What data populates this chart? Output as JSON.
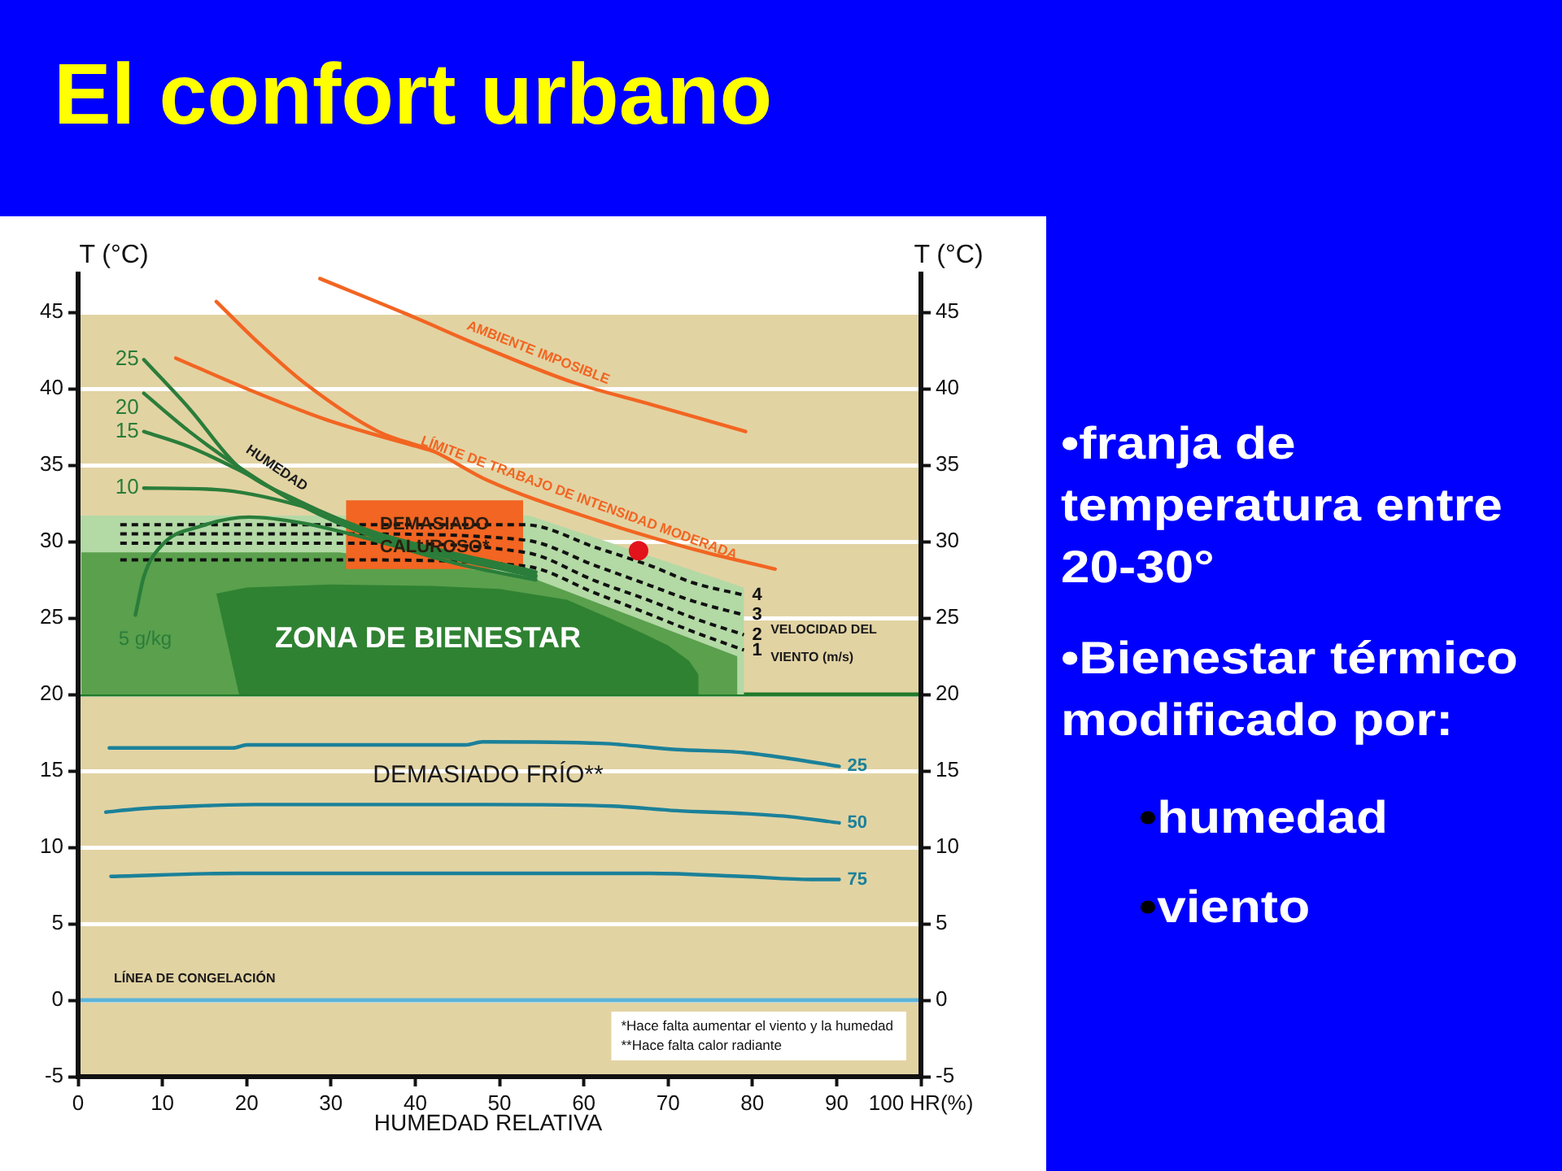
{
  "chart_data": [
    {
      "type": "line",
      "title": "El confort urbano",
      "xlabel": "HUMEDAD RELATIVA",
      "ylabel": "T (°C)",
      "y2label": "T (°C)",
      "xlim": [
        0,
        100
      ],
      "xticks": [
        0,
        10,
        20,
        30,
        40,
        50,
        60,
        70,
        80,
        90,
        {
          "value": 100,
          "label": "100 HR(%)"
        }
      ],
      "ylim": [
        -5,
        47.5
      ],
      "yticks": [
        -5,
        0,
        5,
        10,
        15,
        20,
        25,
        30,
        35,
        40,
        45
      ],
      "y2lim": [
        -5,
        47.5
      ],
      "y2ticks": [
        -5,
        0,
        5,
        10,
        15,
        20,
        25,
        30,
        35,
        40,
        45
      ],
      "grid": "y",
      "bands": [
        {
          "axis": "y",
          "from": -5,
          "to": 45,
          "color": "#e2d3a3"
        }
      ],
      "ref_lines": [
        {
          "axis": "y",
          "value": 0,
          "label": "LÍNEA DE CONGELACIÓN",
          "color": "#5ab4da"
        },
        {
          "axis": "y",
          "value": 20,
          "color": "#1f7a2a"
        }
      ],
      "series": [
        {
          "type": "area",
          "color": "#b3d9a5",
          "x": [
            0,
            53.5,
            79,
            79,
            0
          ],
          "values": [
            31.7,
            31.7,
            27,
            20,
            20
          ]
        },
        {
          "type": "area",
          "color": "#5aa04d",
          "x": [
            0.4,
            31,
            53.5,
            78.2,
            78.2,
            0.4
          ],
          "values": [
            29.3,
            29.3,
            27.7,
            22.5,
            20,
            20
          ]
        },
        {
          "type": "area",
          "color": "#2f8232",
          "x": [
            16.4,
            20,
            30,
            42,
            50,
            58,
            63,
            67,
            70,
            72.5,
            73.6,
            73.6,
            19.1
          ],
          "values": [
            26.6,
            27,
            27.2,
            27.1,
            26.9,
            26.2,
            25,
            24,
            23.2,
            22.2,
            21.3,
            20,
            20
          ]
        },
        {
          "type": "area",
          "color": "#f26522",
          "x": [
            31.8,
            52.8,
            52.8,
            31.8
          ],
          "values": [
            32.7,
            32.7,
            28.2,
            28.2
          ]
        },
        {
          "name": "1",
          "color": "#111111",
          "line_style": "dashed",
          "x": [
            5,
            32,
            53,
            61.5,
            68,
            73,
            79
          ],
          "values": [
            28.8,
            28.8,
            28.4,
            26.6,
            25.2,
            24.1,
            22.9
          ]
        },
        {
          "name": "2",
          "color": "#111111",
          "line_style": "dashed",
          "x": [
            5,
            32,
            53,
            61.5,
            68,
            73,
            79
          ],
          "values": [
            29.9,
            29.9,
            29.3,
            27.4,
            26.1,
            25,
            23.9
          ]
        },
        {
          "name": "3",
          "color": "#111111",
          "line_style": "dashed",
          "x": [
            5,
            32,
            53,
            61.5,
            68,
            73,
            79
          ],
          "values": [
            30.5,
            30.5,
            30.1,
            28.4,
            27.1,
            26.1,
            25.2
          ]
        },
        {
          "name": "4",
          "color": "#111111",
          "line_style": "dashed",
          "x": [
            5,
            32,
            53,
            61.5,
            68,
            73,
            79
          ],
          "values": [
            31.1,
            31.1,
            31.1,
            29.6,
            28.4,
            27.3,
            26.5
          ]
        },
        {
          "name": "25",
          "color": "#2a7d3a",
          "x": [
            7.8,
            13.2,
            19,
            26,
            35.7,
            54.3
          ],
          "values": [
            41.9,
            38.7,
            34.9,
            32.7,
            30.5,
            28
          ]
        },
        {
          "name": "20",
          "color": "#2a7d3a",
          "x": [
            7.8,
            13.2,
            19,
            26,
            35.7,
            54.3
          ],
          "values": [
            39.7,
            37.2,
            34.9,
            32.5,
            30.2,
            27.7
          ]
        },
        {
          "name": "15",
          "color": "#2a7d3a",
          "x": [
            7.8,
            13.2,
            19,
            26,
            35.7,
            54.3
          ],
          "values": [
            37.2,
            36.2,
            34.7,
            32.6,
            30.3,
            27.8
          ]
        },
        {
          "name": "10",
          "color": "#2a7d3a",
          "x": [
            7.8,
            16.4,
            26,
            35.7,
            54.3
          ],
          "values": [
            33.5,
            33.4,
            32.4,
            30.5,
            28
          ]
        },
        {
          "name": "5 g/kg",
          "color": "#2a7d3a",
          "x": [
            6.8,
            7.8,
            10,
            14.5,
            20.3,
            26.7,
            35.7,
            45.3,
            54.3
          ],
          "values": [
            25.2,
            27.7,
            29.8,
            31,
            31.6,
            31.2,
            30,
            28.5,
            27.5
          ]
        },
        {
          "name": "25",
          "color": "#1b8199",
          "x": [
            3.7,
            18.4,
            20,
            46,
            48,
            62,
            71,
            79,
            84.5,
            90.3
          ],
          "values": [
            16.5,
            16.5,
            16.7,
            16.7,
            16.9,
            16.8,
            16.4,
            16.2,
            15.8,
            15.3
          ]
        },
        {
          "name": "50",
          "color": "#1b8199",
          "x": [
            3.3,
            6.8,
            13.9,
            21,
            48.6,
            63.4,
            71,
            79.4,
            84.5,
            90.3
          ],
          "values": [
            12.3,
            12.5,
            12.7,
            12.8,
            12.8,
            12.7,
            12.4,
            12.2,
            12,
            11.6
          ]
        },
        {
          "name": "75",
          "color": "#1b8199",
          "x": [
            3.9,
            19,
            48,
            67.8,
            78.8,
            87,
            90.3
          ],
          "values": [
            8.1,
            8.3,
            8.3,
            8.3,
            8.1,
            7.9,
            7.9
          ]
        },
        {
          "name": "LÍMITE DE TRABAJO DE INTENSIDAD MODERADA",
          "color": "#f26522",
          "x": [
            16.4,
            21.6,
            26.8,
            35.6,
            42.2,
            48.6,
            61.5,
            73,
            82.7
          ],
          "values": [
            45.7,
            42.9,
            40.4,
            37.2,
            35.9,
            34,
            31.4,
            29.5,
            28.2
          ]
        },
        {
          "color": "#f26522",
          "x": [
            11.6,
            20,
            29.3,
            42.2
          ],
          "values": [
            42,
            40,
            38,
            35.9
          ]
        },
        {
          "name": "AMBIENTE IMPOSIBLE",
          "color": "#f26522",
          "x": [
            28.7,
            38.9,
            48.6,
            58.8,
            67.8,
            79.2
          ],
          "values": [
            47.2,
            44.9,
            42.6,
            40.4,
            39,
            37.2
          ]
        },
        {
          "type": "scatter",
          "color": "#e3131b",
          "marker": "circle",
          "x": [
            66.5
          ],
          "values": [
            29.4
          ]
        }
      ],
      "annotations": [
        "HUMEDAD",
        {
          "text": "DEMASIADO CALUROSO*",
          "x": 42.3,
          "y": 30.4
        },
        "ZONA DE BIENESTAR",
        "VELOCIDAD DEL VIENTO (m/s)",
        "DEMASIADO FRÍO**",
        "*Hace falta aumentar el viento y la humedad",
        "**Hace falta calor radiante"
      ]
    },
    {
      "type": "other",
      "annotations": [
        "•franja de temperatura entre 20-30°",
        "•Bienestar térmico modificado por:",
        [
          "•humedad",
          "•viento"
        ]
      ]
    }
  ]
}
